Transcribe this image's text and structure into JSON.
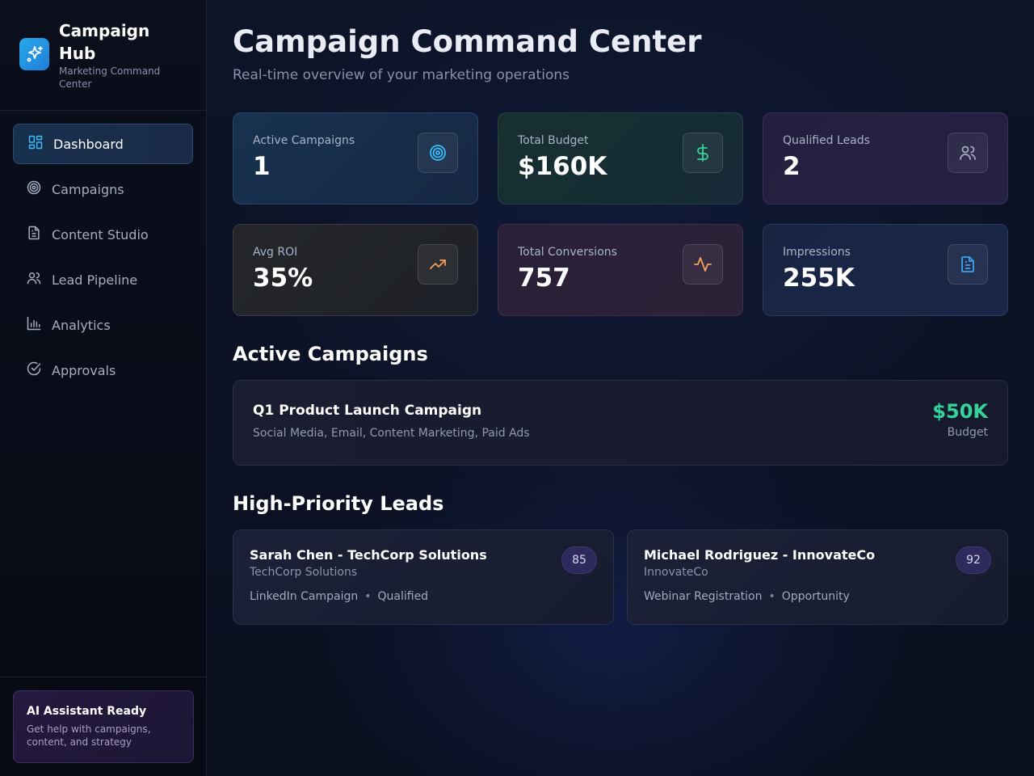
{
  "brand": {
    "title": "Campaign Hub",
    "subtitle": "Marketing Command Center",
    "icon": "sparkles-icon"
  },
  "nav": {
    "items": [
      {
        "label": "Dashboard",
        "icon": "dashboard-icon",
        "active": true
      },
      {
        "label": "Campaigns",
        "icon": "target-icon"
      },
      {
        "label": "Content Studio",
        "icon": "document-icon"
      },
      {
        "label": "Lead Pipeline",
        "icon": "users-icon"
      },
      {
        "label": "Analytics",
        "icon": "bar-chart-icon"
      },
      {
        "label": "Approvals",
        "icon": "check-circle-icon"
      }
    ]
  },
  "ai_card": {
    "title": "AI Assistant Ready",
    "description": "Get help with campaigns, content, and strategy"
  },
  "header": {
    "title": "Campaign Command Center",
    "subtitle": "Real-time overview of your marketing operations"
  },
  "stats": [
    {
      "label": "Active Campaigns",
      "value": "1",
      "icon": "target-icon",
      "color": "#38bdf8"
    },
    {
      "label": "Total Budget",
      "value": "$160K",
      "icon": "dollar-icon",
      "color": "#34d399"
    },
    {
      "label": "Qualified Leads",
      "value": "2",
      "icon": "users-icon",
      "color": "#a5abc0"
    },
    {
      "label": "Avg ROI",
      "value": "35%",
      "icon": "trending-up-icon",
      "color": "#f59e5b"
    },
    {
      "label": "Total Conversions",
      "value": "757",
      "icon": "activity-icon",
      "color": "#f59e5b"
    },
    {
      "label": "Impressions",
      "value": "255K",
      "icon": "document-icon",
      "color": "#38a3f0"
    }
  ],
  "active_campaigns": {
    "title": "Active Campaigns",
    "items": [
      {
        "name": "Q1 Product Launch Campaign",
        "channels": "Social Media, Email, Content Marketing, Paid Ads",
        "budget": "$50K",
        "budget_label": "Budget"
      }
    ]
  },
  "leads": {
    "title": "High-Priority Leads",
    "items": [
      {
        "name": "Sarah Chen - TechCorp Solutions",
        "company": "TechCorp Solutions",
        "source": "LinkedIn Campaign",
        "status": "Qualified",
        "score": "85"
      },
      {
        "name": "Michael Rodriguez - InnovateCo",
        "company": "InnovateCo",
        "source": "Webinar Registration",
        "status": "Opportunity",
        "score": "92"
      }
    ],
    "separator": "•"
  }
}
